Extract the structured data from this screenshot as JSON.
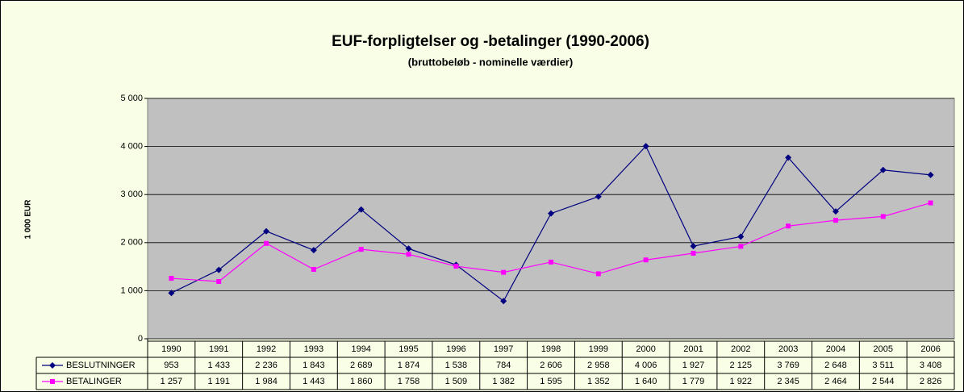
{
  "chart_data": {
    "type": "line",
    "title": "EUF-forpligtelser og -betalinger (1990-2006)",
    "subtitle": "(bruttobeløb - nominelle værdier)",
    "y_label": "1 000 EUR",
    "categories": [
      "1990",
      "1991",
      "1992",
      "1993",
      "1994",
      "1995",
      "1996",
      "1997",
      "1998",
      "1999",
      "2000",
      "2001",
      "2002",
      "2003",
      "2004",
      "2005",
      "2006"
    ],
    "series": [
      {
        "name": "BESLUTNINGER",
        "color": "#000080",
        "marker": "diamond",
        "values": [
          953,
          1433,
          2236,
          1843,
          2689,
          1874,
          1538,
          784,
          2606,
          2958,
          4006,
          1927,
          2125,
          3769,
          2648,
          3511,
          3408
        ],
        "value_labels": [
          "953",
          "1 433",
          "2 236",
          "1 843",
          "2 689",
          "1 874",
          "1 538",
          "784",
          "2 606",
          "2 958",
          "4 006",
          "1 927",
          "2 125",
          "3 769",
          "2 648",
          "3 511",
          "3 408"
        ]
      },
      {
        "name": "BETALINGER",
        "color": "#ff00ff",
        "marker": "square",
        "values": [
          1257,
          1191,
          1984,
          1443,
          1860,
          1758,
          1509,
          1382,
          1595,
          1352,
          1640,
          1779,
          1922,
          2345,
          2464,
          2544,
          2826
        ],
        "value_labels": [
          "1 257",
          "1 191",
          "1 984",
          "1 443",
          "1 860",
          "1 758",
          "1 509",
          "1 382",
          "1 595",
          "1 352",
          "1 640",
          "1 779",
          "1 922",
          "2 345",
          "2 464",
          "2 544",
          "2 826"
        ]
      }
    ],
    "ylim": [
      0,
      5000
    ],
    "yticks": [
      0,
      {
        "value": 1000,
        "label": "1 000"
      },
      {
        "value": 2000,
        "label": "2 000"
      },
      {
        "value": 3000,
        "label": "3 000"
      },
      {
        "value": 4000,
        "label": "4 000"
      },
      {
        "value": 5000,
        "label": "5 000"
      }
    ],
    "grid": true
  }
}
